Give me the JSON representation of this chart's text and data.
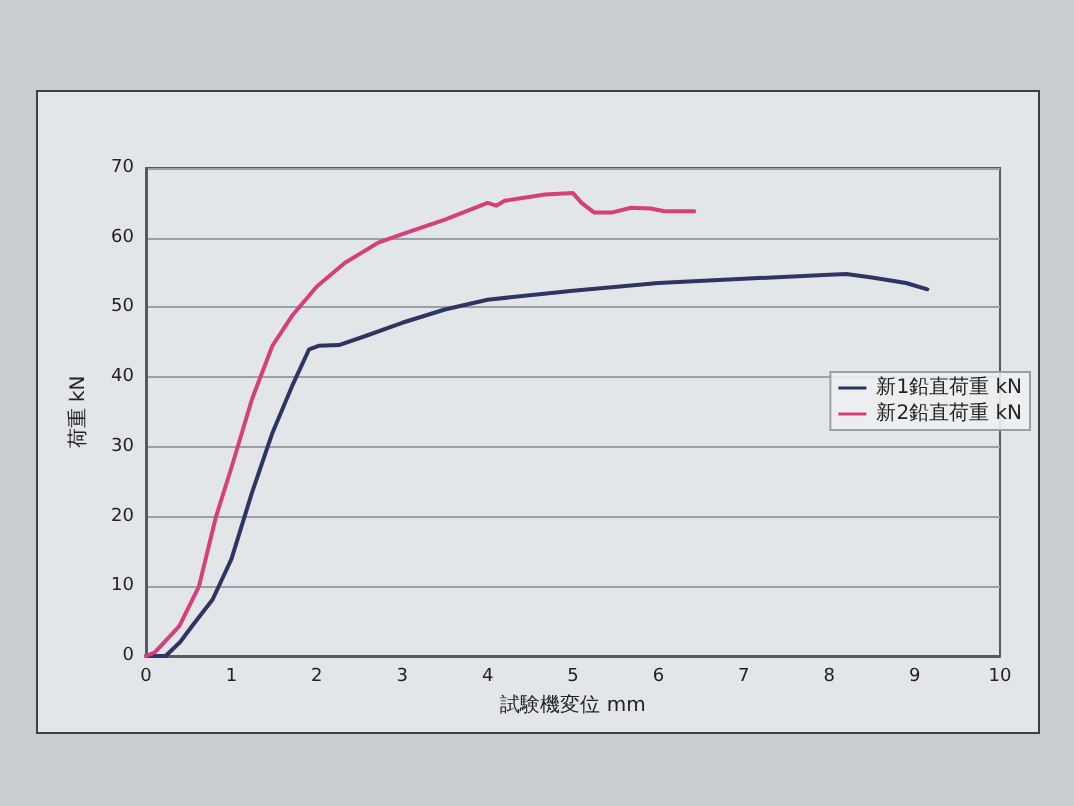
{
  "chart_data": {
    "type": "line",
    "xlabel": "試験機変位 mm",
    "ylabel": "荷重 kN",
    "xlim": [
      0,
      10
    ],
    "xticks": [
      0,
      1,
      2,
      3,
      4,
      5,
      6,
      7,
      8,
      9,
      10
    ],
    "ylim": [
      0,
      70
    ],
    "yticks": [
      0,
      10,
      20,
      30,
      40,
      50,
      60,
      70
    ],
    "grid": "y",
    "legend": "right",
    "marker": "none",
    "line_style": "solid",
    "series": [
      {
        "name": "新1鉛直荷重 kN",
        "color": "#2e3560",
        "x": [
          0,
          0.23,
          0.4,
          0.54,
          0.78,
          1.0,
          1.24,
          1.48,
          1.71,
          1.91,
          2.02,
          2.26,
          2.57,
          3.0,
          3.5,
          4.0,
          5.0,
          6.0,
          7.0,
          8.0,
          8.2,
          8.5,
          8.9,
          9.15
        ],
        "values": [
          0,
          0,
          2,
          4.3,
          8.1,
          13.9,
          23.4,
          32,
          38.7,
          44,
          44.5,
          44.6,
          45.9,
          47.8,
          49.7,
          51.1,
          52.4,
          53.5,
          54.1,
          54.7,
          54.8,
          54.3,
          53.5,
          52.6
        ]
      },
      {
        "name": "新2鉛直荷重 kN",
        "color": "#d6407a",
        "x": [
          0,
          0.1,
          0.39,
          0.62,
          0.82,
          1.0,
          1.24,
          1.48,
          1.71,
          2.0,
          2.33,
          2.72,
          3.0,
          3.5,
          4.0,
          4.1,
          4.2,
          4.67,
          5.0,
          5.1,
          5.25,
          5.45,
          5.68,
          5.91,
          6.07,
          6.42
        ],
        "values": [
          0,
          0.5,
          4.3,
          10,
          20,
          27,
          36.8,
          44.5,
          48.8,
          53,
          56.4,
          59.3,
          60.5,
          62.6,
          65,
          64.6,
          65.3,
          66.2,
          66.4,
          65,
          63.6,
          63.6,
          64.3,
          64.2,
          63.8,
          63.8
        ]
      }
    ]
  }
}
